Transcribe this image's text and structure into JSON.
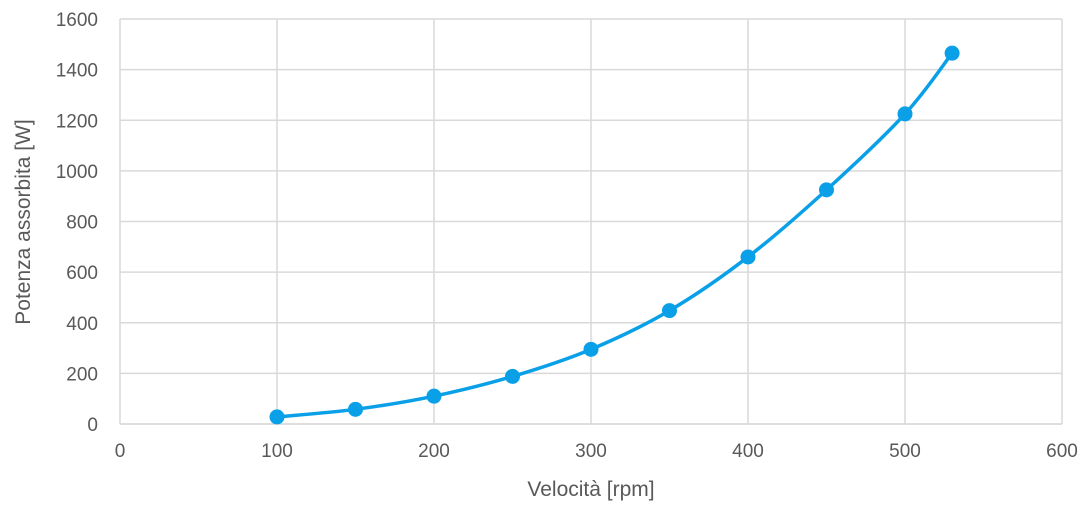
{
  "chart_data": {
    "type": "scatter",
    "title": "",
    "xlabel": "Velocità [rpm]",
    "ylabel": "Potenza assorbita [W]",
    "xlim": [
      0,
      600
    ],
    "ylim": [
      0,
      1600
    ],
    "x_ticks": [
      "0",
      "100",
      "200",
      "300",
      "400",
      "500",
      "600"
    ],
    "y_ticks": [
      "0",
      "200",
      "400",
      "600",
      "800",
      "1000",
      "1200",
      "1400",
      "1600"
    ],
    "grid": true,
    "smooth_line": true,
    "legend": "none",
    "series": [
      {
        "color": "#0aa0e8",
        "points": [
          {
            "x": 100,
            "y": 28
          },
          {
            "x": 150,
            "y": 58
          },
          {
            "x": 200,
            "y": 110
          },
          {
            "x": 250,
            "y": 188
          },
          {
            "x": 300,
            "y": 295
          },
          {
            "x": 350,
            "y": 448
          },
          {
            "x": 400,
            "y": 660
          },
          {
            "x": 450,
            "y": 925
          },
          {
            "x": 500,
            "y": 1225
          },
          {
            "x": 530,
            "y": 1465
          }
        ]
      }
    ]
  }
}
